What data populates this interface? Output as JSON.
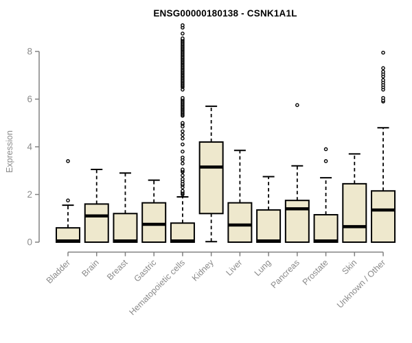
{
  "page": {
    "background": "#ffffff"
  },
  "chart_data": {
    "type": "boxplot",
    "title": "ENSG00000180138 - CSNK1A1L",
    "ylabel": "Expression",
    "xlabel": "",
    "ylim": [
      0,
      9.2
    ],
    "yticks": [
      0,
      2,
      4,
      6,
      8
    ],
    "grid": false,
    "legend": "none",
    "colors": {
      "box_fill": "#EEE8CD",
      "box_stroke": "#000000",
      "median_stroke": "#000000",
      "axis_line": "#808080",
      "tick_label": "#8a8a8a",
      "title_color": "#000000",
      "background": "#ffffff"
    },
    "categories": [
      "Bladder",
      "Brain",
      "Breast",
      "Gastric",
      "Hematopoietic cells",
      "Kidney",
      "Liver",
      "Lung",
      "Pancreas",
      "Prostate",
      "Skin",
      "Unknown / Other"
    ],
    "series": [
      {
        "label": "Bladder",
        "whisker_low": 0,
        "q1": 0,
        "median": 0.05,
        "q3": 0.6,
        "whisker_high": 1.55,
        "outliers": [
          1.75,
          3.4
        ]
      },
      {
        "label": "Brain",
        "whisker_low": 0,
        "q1": 0,
        "median": 1.1,
        "q3": 1.6,
        "whisker_high": 3.05,
        "outliers": []
      },
      {
        "label": "Breast",
        "whisker_low": 0,
        "q1": 0,
        "median": 0.05,
        "q3": 1.2,
        "whisker_high": 2.9,
        "outliers": []
      },
      {
        "label": "Gastric",
        "whisker_low": 0,
        "q1": 0,
        "median": 0.75,
        "q3": 1.65,
        "whisker_high": 2.6,
        "outliers": []
      },
      {
        "label": "Hematopoietic cells",
        "whisker_low": 0,
        "q1": 0,
        "median": 0.05,
        "q3": 0.8,
        "whisker_high": 1.9,
        "outliers": [
          2.0,
          2.05,
          2.1,
          2.15,
          2.3,
          2.4,
          2.45,
          2.55,
          2.65,
          2.8,
          2.95,
          3.0,
          3.05,
          3.3,
          3.45,
          3.55,
          3.8,
          4.1,
          4.35,
          4.5,
          4.65,
          4.85,
          4.95,
          5.0,
          5.3,
          5.35,
          5.4,
          5.45,
          5.5,
          5.55,
          5.6,
          5.65,
          5.7,
          5.75,
          5.8,
          5.85,
          5.9,
          5.95,
          6.0,
          6.05,
          6.4,
          6.5,
          6.55,
          6.6,
          6.65,
          6.7,
          6.75,
          6.8,
          6.85,
          6.9,
          6.95,
          7.0,
          7.05,
          7.1,
          7.15,
          7.2,
          7.25,
          7.3,
          7.35,
          7.4,
          7.45,
          7.5,
          7.55,
          7.6,
          7.65,
          7.7,
          7.75,
          7.8,
          7.85,
          7.9,
          7.95,
          8.0,
          8.05,
          8.1,
          8.15,
          8.2,
          8.25,
          8.3,
          8.35,
          8.4,
          8.45,
          8.5,
          8.55,
          8.75,
          9.0,
          9.1
        ]
      },
      {
        "label": "Kidney",
        "whisker_low": 0.02,
        "q1": 1.2,
        "median": 3.15,
        "q3": 4.2,
        "whisker_high": 5.7,
        "outliers": []
      },
      {
        "label": "Liver",
        "whisker_low": 0,
        "q1": 0,
        "median": 0.72,
        "q3": 1.65,
        "whisker_high": 3.85,
        "outliers": []
      },
      {
        "label": "Lung",
        "whisker_low": 0,
        "q1": 0,
        "median": 0.05,
        "q3": 1.35,
        "whisker_high": 2.75,
        "outliers": []
      },
      {
        "label": "Pancreas",
        "whisker_low": 0,
        "q1": 0,
        "median": 1.4,
        "q3": 1.75,
        "whisker_high": 3.2,
        "outliers": [
          5.75
        ]
      },
      {
        "label": "Prostate",
        "whisker_low": 0,
        "q1": 0,
        "median": 0.05,
        "q3": 1.15,
        "whisker_high": 2.7,
        "outliers": [
          3.4,
          3.9
        ]
      },
      {
        "label": "Skin",
        "whisker_low": 0,
        "q1": 0,
        "median": 0.65,
        "q3": 2.45,
        "whisker_high": 3.7,
        "outliers": []
      },
      {
        "label": "Unknown / Other",
        "whisker_low": 0,
        "q1": 0,
        "median": 1.35,
        "q3": 2.15,
        "whisker_high": 4.8,
        "outliers": [
          5.9,
          5.95,
          6.05,
          6.4,
          6.5,
          6.6,
          6.7,
          6.8,
          6.95,
          7.05,
          7.15,
          7.3,
          7.95
        ]
      }
    ]
  }
}
